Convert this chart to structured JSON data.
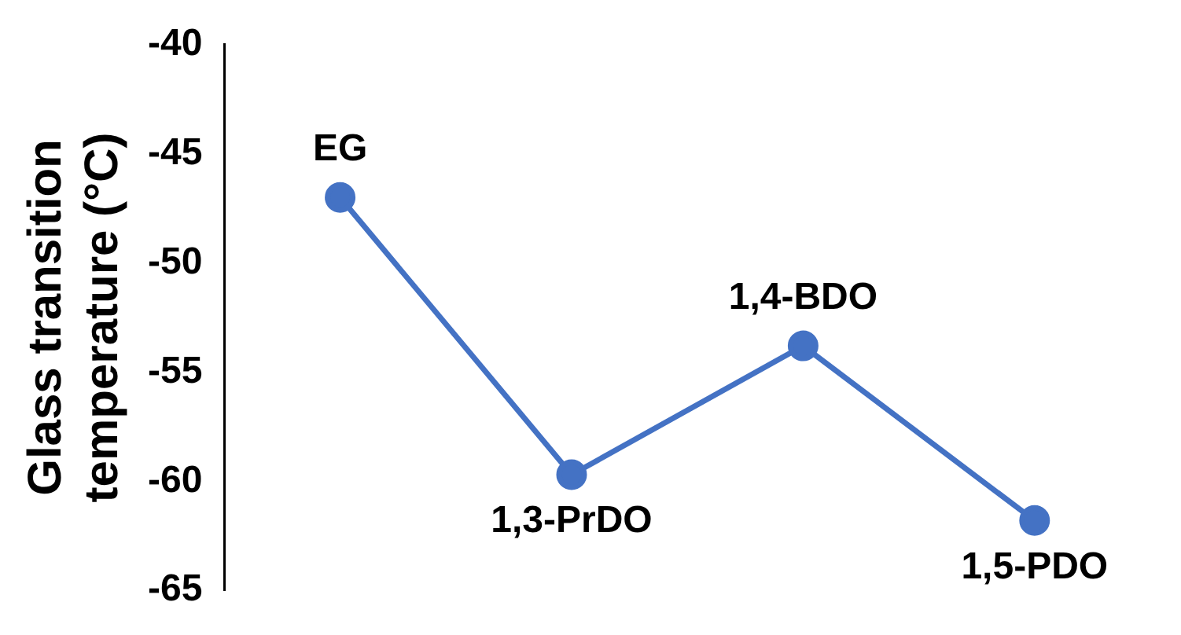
{
  "chart_data": {
    "type": "line",
    "ylabel": "Glass transition temperature (°C)",
    "categories": [
      null,
      null,
      null,
      null
    ],
    "series": [
      {
        "color": "#4472c4",
        "values": [
          -47,
          -59.7,
          -53.8,
          -61.8
        ]
      }
    ],
    "ylim": [
      -65,
      -40
    ],
    "yticks": [
      -65,
      -60,
      -55,
      -50,
      -45,
      -40
    ],
    "tick_labels": "y",
    "grid": false,
    "legend": false,
    "marker": "circle",
    "line_style": "solid",
    "annotations": [
      {
        "text": "EG",
        "y": -47
      },
      {
        "text": "1,3-PrDO",
        "y": -59.7
      },
      {
        "text": "1,4-BDO",
        "y": -53.8
      },
      {
        "text": "1,5-PDO",
        "y": -61.8
      }
    ]
  }
}
